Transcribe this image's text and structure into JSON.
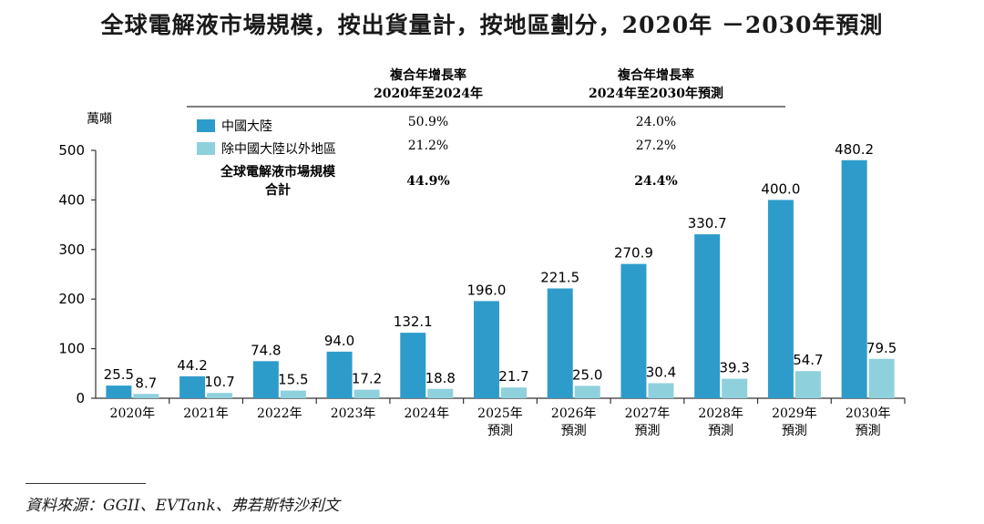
{
  "title": "全球電解液市場規模，按出貨量計，按地區劃分，2020年 －2030年預測",
  "chart_data": {
    "type": "bar",
    "ylabel": "萬噸",
    "ylim": [
      0,
      500
    ],
    "yticks": [
      "0",
      "100",
      "200",
      "300",
      "400",
      "500"
    ],
    "categories": [
      {
        "line1": "2020年",
        "line2": ""
      },
      {
        "line1": "2021年",
        "line2": ""
      },
      {
        "line1": "2022年",
        "line2": ""
      },
      {
        "line1": "2023年",
        "line2": ""
      },
      {
        "line1": "2024年",
        "line2": ""
      },
      {
        "line1": "2025年",
        "line2": "預測"
      },
      {
        "line1": "2026年",
        "line2": "預測"
      },
      {
        "line1": "2027年",
        "line2": "預測"
      },
      {
        "line1": "2028年",
        "line2": "預測"
      },
      {
        "line1": "2029年",
        "line2": "預測"
      },
      {
        "line1": "2030年",
        "line2": "預測"
      }
    ],
    "series": [
      {
        "name": "中國大陸",
        "color": "#2e9ccb",
        "values": [
          25.5,
          44.2,
          74.8,
          94.0,
          132.1,
          196.0,
          221.5,
          270.9,
          330.7,
          400.0,
          480.2
        ],
        "labels": [
          "25.5",
          "44.2",
          "74.8",
          "94.0",
          "132.1",
          "196.0",
          "221.5",
          "270.9",
          "330.7",
          "400.0",
          "480.2"
        ]
      },
      {
        "name": "除中國大陸以外地區",
        "color": "#8fd0dd",
        "values": [
          8.7,
          10.7,
          15.5,
          17.2,
          18.8,
          21.7,
          25.0,
          30.4,
          39.3,
          54.7,
          79.5
        ],
        "labels": [
          "8.7",
          "10.7",
          "15.5",
          "17.2",
          "18.8",
          "21.7",
          "25.0",
          "30.4",
          "39.3",
          "54.7",
          "79.5"
        ]
      }
    ],
    "cagr_table": {
      "col1_header_l1": "複合年增長率",
      "col1_header_l2": "2020年至2024年",
      "col2_header_l1": "複合年增長率",
      "col2_header_l2": "2024年至2030年預測",
      "rows": [
        {
          "label": "中國大陸",
          "c1": "50.9%",
          "c2": "24.0%"
        },
        {
          "label": "除中國大陸以外地區",
          "c1": "21.2%",
          "c2": "27.2%"
        }
      ],
      "total_label_l1": "全球電解液市場規模",
      "total_label_l2": "合計",
      "total_c1": "44.9%",
      "total_c2": "24.4%"
    }
  },
  "source": "資料來源：GGII、EVTank、弗若斯特沙利文"
}
